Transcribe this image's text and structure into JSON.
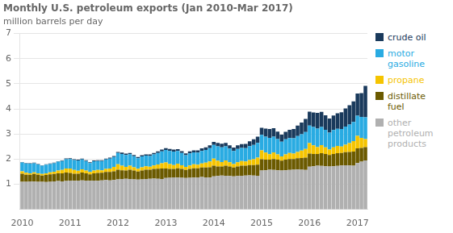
{
  "chart_data": {
    "type": "bar",
    "title": "Monthly U.S. petroleum exports (Jan 2010-Mar 2017)",
    "ylabel": "million barrels per day",
    "stacked": true,
    "grid": true,
    "legend": "right",
    "ylim": [
      0,
      7
    ],
    "yticks": [
      1,
      2,
      3,
      4,
      5,
      6,
      7
    ],
    "categories": [
      "2010",
      null,
      null,
      null,
      null,
      null,
      null,
      null,
      null,
      null,
      null,
      null,
      "2011",
      null,
      null,
      null,
      null,
      null,
      null,
      null,
      null,
      null,
      null,
      null,
      "2012",
      null,
      null,
      null,
      null,
      null,
      null,
      null,
      null,
      null,
      null,
      null,
      "2013",
      null,
      null,
      null,
      null,
      null,
      null,
      null,
      null,
      null,
      null,
      null,
      "2014",
      null,
      null,
      null,
      null,
      null,
      null,
      null,
      null,
      null,
      null,
      null,
      "2015",
      null,
      null,
      null,
      null,
      null,
      null,
      null,
      null,
      null,
      null,
      null,
      "2016",
      null,
      null,
      null,
      null,
      null,
      null,
      null,
      null,
      null,
      null,
      null,
      "2017",
      null,
      null
    ],
    "series": [
      {
        "name": "other\npetroleum\nproducts",
        "color": "#b0b0b0",
        "values": [
          1.1,
          1.1,
          1.12,
          1.11,
          1.1,
          1.1,
          1.09,
          1.1,
          1.12,
          1.13,
          1.12,
          1.13,
          1.15,
          1.14,
          1.15,
          1.16,
          1.15,
          1.14,
          1.15,
          1.14,
          1.16,
          1.17,
          1.16,
          1.17,
          1.2,
          1.21,
          1.22,
          1.21,
          1.2,
          1.19,
          1.2,
          1.21,
          1.22,
          1.23,
          1.22,
          1.21,
          1.25,
          1.26,
          1.28,
          1.27,
          1.26,
          1.25,
          1.26,
          1.27,
          1.28,
          1.29,
          1.28,
          1.27,
          1.32,
          1.33,
          1.35,
          1.34,
          1.33,
          1.32,
          1.33,
          1.34,
          1.35,
          1.36,
          1.35,
          1.34,
          1.55,
          1.56,
          1.58,
          1.57,
          1.56,
          1.55,
          1.56,
          1.57,
          1.58,
          1.59,
          1.58,
          1.57,
          1.7,
          1.72,
          1.74,
          1.73,
          1.72,
          1.71,
          1.72,
          1.73,
          1.75,
          1.76,
          1.75,
          1.74,
          1.85,
          1.9,
          1.95
        ]
      },
      {
        "name": "distillate\nfuel",
        "color": "#6b5a00",
        "values": [
          0.32,
          0.28,
          0.26,
          0.3,
          0.28,
          0.25,
          0.28,
          0.3,
          0.29,
          0.31,
          0.32,
          0.34,
          0.3,
          0.28,
          0.27,
          0.31,
          0.29,
          0.26,
          0.29,
          0.31,
          0.3,
          0.32,
          0.33,
          0.35,
          0.38,
          0.35,
          0.33,
          0.37,
          0.35,
          0.32,
          0.35,
          0.37,
          0.36,
          0.38,
          0.4,
          0.42,
          0.38,
          0.35,
          0.33,
          0.37,
          0.35,
          0.32,
          0.35,
          0.37,
          0.36,
          0.38,
          0.39,
          0.41,
          0.42,
          0.38,
          0.36,
          0.4,
          0.38,
          0.35,
          0.38,
          0.4,
          0.39,
          0.41,
          0.42,
          0.44,
          0.45,
          0.42,
          0.4,
          0.44,
          0.42,
          0.39,
          0.42,
          0.44,
          0.43,
          0.45,
          0.47,
          0.49,
          0.52,
          0.49,
          0.47,
          0.51,
          0.49,
          0.46,
          0.49,
          0.51,
          0.5,
          0.52,
          0.54,
          0.56,
          0.58,
          0.55,
          0.53
        ]
      },
      {
        "name": "propane",
        "color": "#f5c400",
        "values": [
          0.1,
          0.08,
          0.06,
          0.07,
          0.06,
          0.06,
          0.07,
          0.08,
          0.09,
          0.11,
          0.13,
          0.16,
          0.18,
          0.15,
          0.12,
          0.13,
          0.11,
          0.09,
          0.11,
          0.12,
          0.1,
          0.12,
          0.14,
          0.17,
          0.22,
          0.18,
          0.14,
          0.16,
          0.13,
          0.11,
          0.13,
          0.14,
          0.12,
          0.14,
          0.17,
          0.21,
          0.24,
          0.2,
          0.16,
          0.18,
          0.15,
          0.12,
          0.14,
          0.16,
          0.14,
          0.16,
          0.19,
          0.23,
          0.28,
          0.23,
          0.18,
          0.21,
          0.17,
          0.14,
          0.17,
          0.19,
          0.17,
          0.2,
          0.23,
          0.28,
          0.35,
          0.28,
          0.22,
          0.26,
          0.21,
          0.17,
          0.21,
          0.24,
          0.21,
          0.25,
          0.29,
          0.35,
          0.42,
          0.34,
          0.27,
          0.32,
          0.26,
          0.21,
          0.26,
          0.29,
          0.25,
          0.3,
          0.35,
          0.42,
          0.5,
          0.4,
          0.32
        ]
      },
      {
        "name": "motor\ngasoline",
        "color": "#29abe2",
        "values": [
          0.35,
          0.37,
          0.38,
          0.36,
          0.35,
          0.33,
          0.34,
          0.33,
          0.34,
          0.35,
          0.36,
          0.37,
          0.38,
          0.4,
          0.41,
          0.39,
          0.38,
          0.36,
          0.37,
          0.36,
          0.37,
          0.38,
          0.39,
          0.4,
          0.45,
          0.47,
          0.48,
          0.46,
          0.44,
          0.42,
          0.43,
          0.42,
          0.43,
          0.44,
          0.46,
          0.47,
          0.5,
          0.52,
          0.53,
          0.51,
          0.49,
          0.47,
          0.48,
          0.47,
          0.48,
          0.5,
          0.51,
          0.53,
          0.55,
          0.57,
          0.58,
          0.56,
          0.54,
          0.52,
          0.53,
          0.52,
          0.53,
          0.55,
          0.57,
          0.59,
          0.62,
          0.64,
          0.65,
          0.63,
          0.61,
          0.59,
          0.6,
          0.59,
          0.61,
          0.63,
          0.65,
          0.67,
          0.7,
          0.73,
          0.74,
          0.72,
          0.7,
          0.68,
          0.69,
          0.68,
          0.7,
          0.72,
          0.74,
          0.76,
          0.8,
          0.83,
          0.87
        ]
      },
      {
        "name": "crude oil",
        "color": "#1a3a5c",
        "values": [
          0.02,
          0.02,
          0.02,
          0.02,
          0.02,
          0.02,
          0.02,
          0.02,
          0.02,
          0.02,
          0.02,
          0.03,
          0.03,
          0.03,
          0.03,
          0.03,
          0.03,
          0.03,
          0.03,
          0.03,
          0.03,
          0.03,
          0.04,
          0.04,
          0.04,
          0.05,
          0.05,
          0.05,
          0.05,
          0.05,
          0.05,
          0.05,
          0.06,
          0.06,
          0.06,
          0.07,
          0.07,
          0.08,
          0.08,
          0.07,
          0.07,
          0.07,
          0.08,
          0.08,
          0.09,
          0.1,
          0.1,
          0.11,
          0.12,
          0.14,
          0.15,
          0.14,
          0.13,
          0.13,
          0.14,
          0.15,
          0.17,
          0.19,
          0.22,
          0.25,
          0.28,
          0.32,
          0.35,
          0.33,
          0.3,
          0.28,
          0.3,
          0.33,
          0.37,
          0.42,
          0.47,
          0.52,
          0.55,
          0.58,
          0.62,
          0.6,
          0.58,
          0.56,
          0.58,
          0.62,
          0.67,
          0.72,
          0.77,
          0.82,
          0.88,
          0.95,
          1.25
        ]
      }
    ]
  }
}
